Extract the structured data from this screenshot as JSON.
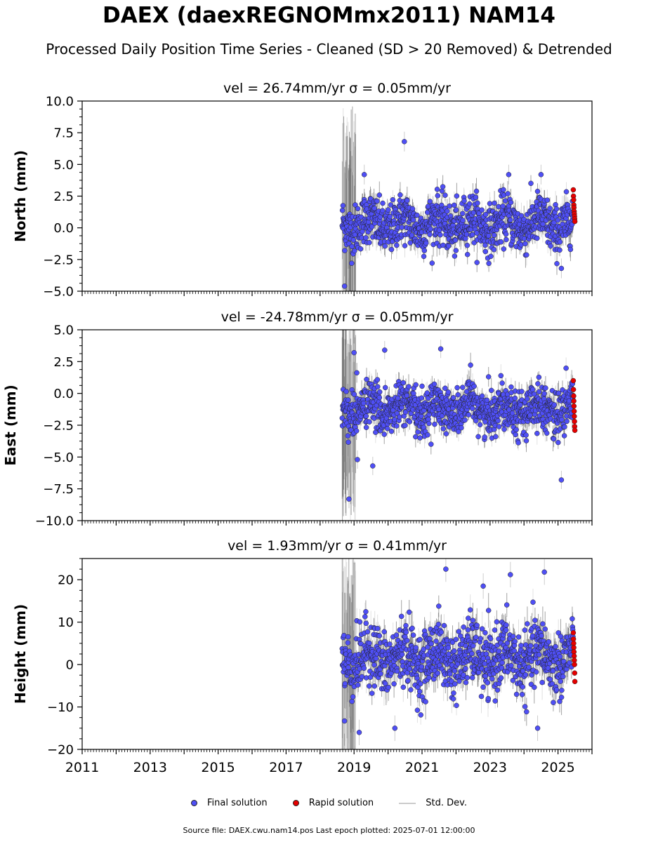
{
  "title": "DAEX (daexREGNOMmx2011) NAM14",
  "subtitle": "Processed Daily Position Time Series - Cleaned (SD > 20 Removed) & Detrended",
  "legend": {
    "final": "Final solution",
    "rapid": "Rapid solution",
    "std": "Std. Dev."
  },
  "footer": "Source file: DAEX.cwu.nam14.pos  Last epoch plotted: 2025-07-01 12:00:00",
  "colors": {
    "final": "#4f4ff5",
    "rapid": "#e50000",
    "std_dev": "#666666",
    "std_dev_light": "#cccccc"
  },
  "chart_data": [
    {
      "type": "scatter",
      "title": "vel = 26.74mm/yr   σ = 0.05mm/yr",
      "ylabel": "North (mm)",
      "xlim": [
        2011,
        2026
      ],
      "ylim": [
        -5,
        10
      ],
      "yticks": [
        "−5.0",
        "−2.5",
        "0.0",
        "2.5",
        "5.0",
        "7.5",
        "10.0"
      ],
      "ytick_values": [
        -5,
        -2.5,
        0,
        2.5,
        5,
        7.5,
        10
      ],
      "series": [
        {
          "name": "Final solution",
          "x_range": [
            2018.65,
            2025.45
          ],
          "mean": 0.3,
          "spread": 1.3,
          "outliers": [
            [
              2020.48,
              6.8
            ],
            [
              2018.72,
              -4.6
            ],
            [
              2023.55,
              4.2
            ],
            [
              2024.5,
              4.2
            ],
            [
              2025.1,
              -3.2
            ],
            [
              2019.3,
              4.2
            ]
          ]
        },
        {
          "name": "Rapid solution",
          "x_range": [
            2025.45,
            2025.5
          ],
          "values": [
            3.0,
            2.5,
            2.2,
            1.8,
            1.6,
            1.3,
            1.1,
            0.9,
            0.7,
            0.5
          ]
        }
      ]
    },
    {
      "type": "scatter",
      "title": "vel = -24.78mm/yr   σ = 0.05mm/yr",
      "ylabel": "East (mm)",
      "xlim": [
        2011,
        2026
      ],
      "ylim": [
        -10,
        5
      ],
      "yticks": [
        "−10.0",
        "−7.5",
        "−5.0",
        "−2.5",
        "0.0",
        "2.5",
        "5.0"
      ],
      "ytick_values": [
        -10,
        -7.5,
        -5,
        -2.5,
        0,
        2.5,
        5
      ],
      "series": [
        {
          "name": "Final solution",
          "x_range": [
            2018.65,
            2025.45
          ],
          "mean": -1.2,
          "spread": 1.2,
          "outliers": [
            [
              2018.85,
              -8.3
            ],
            [
              2025.1,
              -6.8
            ],
            [
              2019.0,
              3.2
            ],
            [
              2019.9,
              3.4
            ],
            [
              2021.55,
              3.5
            ],
            [
              2019.55,
              -5.7
            ],
            [
              2019.1,
              -5.2
            ]
          ]
        },
        {
          "name": "Rapid solution",
          "x_range": [
            2025.45,
            2025.5
          ],
          "values": [
            1.0,
            0.3,
            -0.2,
            -0.6,
            -1.0,
            -1.4,
            -1.8,
            -2.2,
            -2.6,
            -2.9
          ]
        }
      ]
    },
    {
      "type": "scatter",
      "title": "vel = 1.93mm/yr   σ = 0.41mm/yr",
      "ylabel": "Height (mm)",
      "xlabel": "",
      "xlim": [
        2011,
        2026
      ],
      "ylim": [
        -20,
        25
      ],
      "yticks": [
        "−20",
        "−10",
        "0",
        "10",
        "20"
      ],
      "ytick_values": [
        -20,
        -10,
        0,
        10,
        20
      ],
      "xticks": [
        "2011",
        "2013",
        "2015",
        "2017",
        "2019",
        "2021",
        "2023",
        "2025"
      ],
      "xtick_values": [
        2011,
        2013,
        2015,
        2017,
        2019,
        2021,
        2023,
        2025
      ],
      "series": [
        {
          "name": "Final solution",
          "x_range": [
            2018.65,
            2025.45
          ],
          "mean": 1.5,
          "spread": 5.0,
          "outliers": [
            [
              2021.7,
              22.5
            ],
            [
              2024.6,
              21.8
            ],
            [
              2023.6,
              21.2
            ],
            [
              2018.72,
              -13.3
            ],
            [
              2019.15,
              -16.0
            ],
            [
              2020.2,
              -15.0
            ],
            [
              2024.4,
              -15.0
            ],
            [
              2022.8,
              18.5
            ]
          ]
        },
        {
          "name": "Rapid solution",
          "x_range": [
            2025.45,
            2025.5
          ],
          "values": [
            7.5,
            6.0,
            5.0,
            4.0,
            3.0,
            2.0,
            1.0,
            0.0,
            -2.0,
            -4.0
          ]
        }
      ]
    }
  ]
}
